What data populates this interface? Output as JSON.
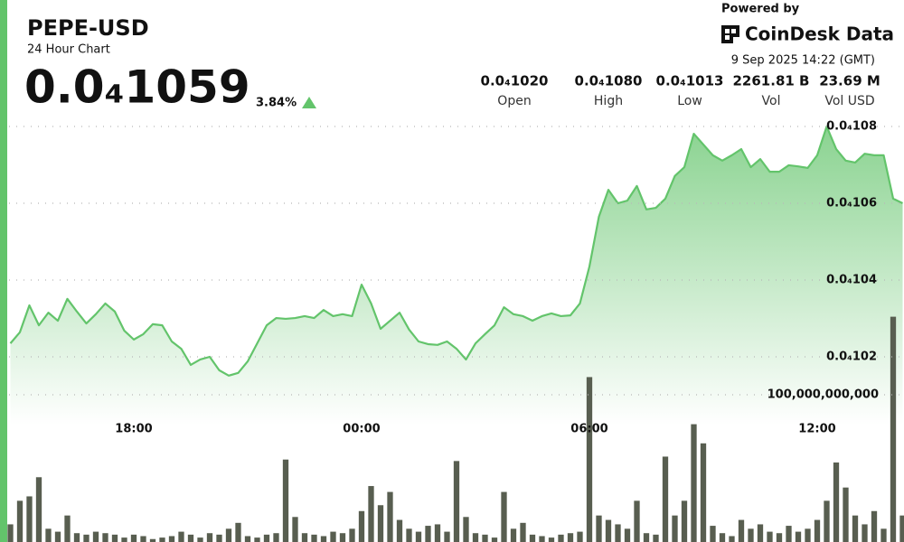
{
  "header": {
    "title": "PEPE-USD",
    "subtitle": "24 Hour Chart",
    "price": "0.0₄1059",
    "change": "3.84%",
    "powered_by": "Powered by",
    "brand": "CoinDesk Data",
    "timestamp": "9 Sep 2025 14:22 (GMT)"
  },
  "stats": [
    {
      "value": "0.0₄1020",
      "label": "Open"
    },
    {
      "value": "0.0₄1080",
      "label": "High"
    },
    {
      "value": "0.0₄1013",
      "label": "Low"
    },
    {
      "value": "2261.81 B",
      "label": "Vol"
    },
    {
      "value": "23.69 M",
      "label": "Vol USD"
    }
  ],
  "chart_data": {
    "type": "area",
    "color": "#63c46b",
    "grid": true,
    "categories": [
      null,
      null,
      null,
      null,
      null,
      null,
      null,
      null,
      null,
      null,
      null,
      null,
      null,
      "18:00",
      null,
      null,
      null,
      null,
      null,
      null,
      null,
      null,
      null,
      null,
      null,
      null,
      null,
      null,
      null,
      null,
      null,
      null,
      null,
      null,
      null,
      null,
      null,
      "00:00",
      null,
      null,
      null,
      null,
      null,
      null,
      null,
      null,
      null,
      null,
      null,
      null,
      null,
      null,
      null,
      null,
      null,
      null,
      null,
      null,
      null,
      null,
      null,
      "06:00",
      null,
      null,
      null,
      null,
      null,
      null,
      null,
      null,
      null,
      null,
      null,
      null,
      null,
      null,
      null,
      null,
      null,
      null,
      null,
      null,
      null,
      null,
      null,
      "12:00",
      null,
      null,
      null,
      null,
      null,
      null,
      null,
      null,
      null
    ],
    "values": [
      1.0235e-05,
      1.0264e-05,
      1.0334e-05,
      1.0282e-05,
      1.0315e-05,
      1.0294e-05,
      1.0351e-05,
      1.0318e-05,
      1.0287e-05,
      1.0311e-05,
      1.0339e-05,
      1.0318e-05,
      1.0268e-05,
      1.0245e-05,
      1.0259e-05,
      1.0285e-05,
      1.0282e-05,
      1.024e-05,
      1.0221e-05,
      1.0179e-05,
      1.0193e-05,
      1.02e-05,
      1.0165e-05,
      1.0151e-05,
      1.0158e-05,
      1.0188e-05,
      1.0235e-05,
      1.0282e-05,
      1.0301e-05,
      1.0299e-05,
      1.0301e-05,
      1.0306e-05,
      1.0301e-05,
      1.0322e-05,
      1.0306e-05,
      1.0311e-05,
      1.0306e-05,
      1.0388e-05,
      1.0339e-05,
      1.0273e-05,
      1.0294e-05,
      1.0315e-05,
      1.0271e-05,
      1.024e-05,
      1.0233e-05,
      1.0231e-05,
      1.024e-05,
      1.0221e-05,
      1.0193e-05,
      1.0235e-05,
      1.0259e-05,
      1.0282e-05,
      1.0329e-05,
      1.0311e-05,
      1.0306e-05,
      1.0294e-05,
      1.0306e-05,
      1.0313e-05,
      1.0306e-05,
      1.0308e-05,
      1.0339e-05,
      1.0435e-05,
      1.0565e-05,
      1.0635e-05,
      1.06e-05,
      1.0607e-05,
      1.0645e-05,
      1.0584e-05,
      1.0588e-05,
      1.0612e-05,
      1.0671e-05,
      1.0694e-05,
      1.0781e-05,
      1.0753e-05,
      1.0725e-05,
      1.0711e-05,
      1.0725e-05,
      1.0741e-05,
      1.0694e-05,
      1.0715e-05,
      1.0682e-05,
      1.0682e-05,
      1.0699e-05,
      1.0696e-05,
      1.0692e-05,
      1.0725e-05,
      1.08e-05,
      1.0741e-05,
      1.0711e-05,
      1.0706e-05,
      1.0729e-05,
      1.0725e-05,
      1.0725e-05,
      1.0612e-05,
      1.06e-05
    ],
    "ylim": [
      1.005e-05,
      1.082e-05
    ],
    "yticks": [
      {
        "value": 1.08e-05,
        "label": "0.0₄108"
      },
      {
        "value": 1.06e-05,
        "label": "0.0₄106"
      },
      {
        "value": 1.04e-05,
        "label": "0.0₄104"
      },
      {
        "value": 1.02e-05,
        "label": "0.0₄102"
      }
    ],
    "volume": {
      "type": "bar",
      "axis": "y2",
      "color": "#585e50",
      "values": [
        12000000000.0,
        28000000000.0,
        31000000000.0,
        44000000000.0,
        9000000000.0,
        7000000000.0,
        18000000000.0,
        6000000000.0,
        5000000000.0,
        7000000000.0,
        6000000000.0,
        5000000000.0,
        3000000000.0,
        5000000000.0,
        4000000000.0,
        2000000000.0,
        3000000000.0,
        4000000000.0,
        7000000000.0,
        5000000000.0,
        3000000000.0,
        6000000000.0,
        5000000000.0,
        9000000000.0,
        13000000000.0,
        4000000000.0,
        3000000000.0,
        5000000000.0,
        6000000000.0,
        56000000000.0,
        17000000000.0,
        6000000000.0,
        5000000000.0,
        4000000000.0,
        7000000000.0,
        6000000000.0,
        9000000000.0,
        21000000000.0,
        38000000000.0,
        25000000000.0,
        34000000000.0,
        15000000000.0,
        9000000000.0,
        7000000000.0,
        11000000000.0,
        12000000000.0,
        7000000000.0,
        55000000000.0,
        17000000000.0,
        6000000000.0,
        5000000000.0,
        3000000000.0,
        34000000000.0,
        9000000000.0,
        13000000000.0,
        5000000000.0,
        4000000000.0,
        3000000000.0,
        5000000000.0,
        6000000000.0,
        7000000000.0,
        112000000000.0,
        18000000000.0,
        15000000000.0,
        12000000000.0,
        9000000000.0,
        28000000000.0,
        6000000000.0,
        5000000000.0,
        58000000000.0,
        18000000000.0,
        28000000000.0,
        80000000000.0,
        67000000000.0,
        11000000000.0,
        6000000000.0,
        4000000000.0,
        15000000000.0,
        9000000000.0,
        12000000000.0,
        7000000000.0,
        6000000000.0,
        11000000000.0,
        7000000000.0,
        9000000000.0,
        15000000000.0,
        28000000000.0,
        54000000000.0,
        37000000000.0,
        18000000000.0,
        12000000000.0,
        21000000000.0,
        9000000000.0,
        153000000000.0,
        18000000000.0
      ]
    },
    "y2lim": [
      0,
      200000000000
    ],
    "y2ticks": [
      {
        "value": 100000000000,
        "label": "100,000,000,000"
      }
    ]
  }
}
